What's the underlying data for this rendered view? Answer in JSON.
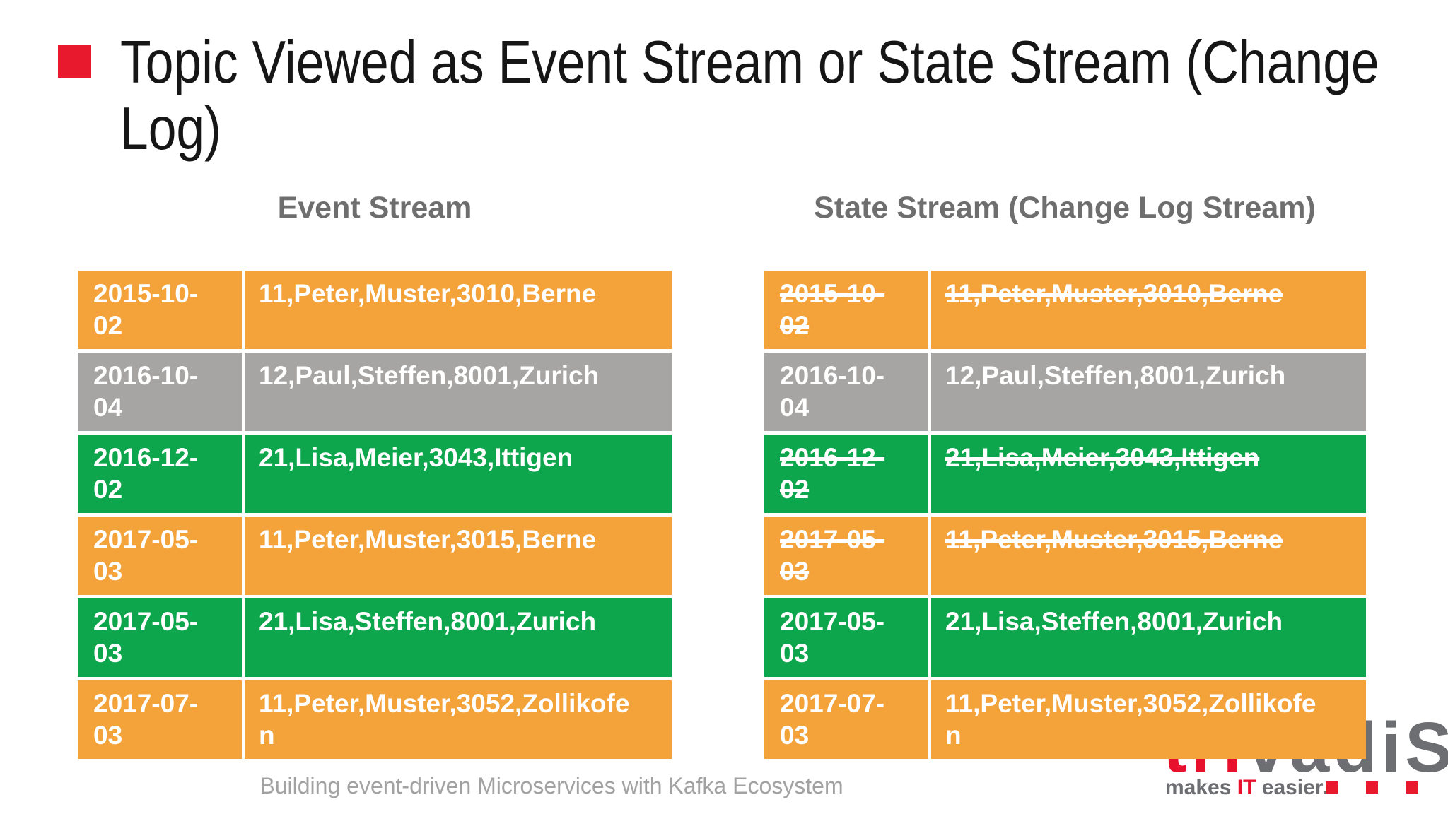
{
  "slide": {
    "title": "Topic Viewed as Event Stream or State Stream (Change Log)",
    "footer": "Building event-driven Microservices with Kafka Ecosystem"
  },
  "colors": {
    "orange": "#f4a23a",
    "gray": "#a6a5a3",
    "green": "#0ea64c",
    "accent_red": "#e8192d",
    "title_text": "#161616",
    "header_text": "#6e6e6e",
    "footer_text": "#a2a2a2",
    "logo_gray": "#6d6e71",
    "logo_red": "#e8112d"
  },
  "tables": {
    "event_stream": {
      "header": "Event Stream",
      "rows": [
        {
          "date": "2015-10-02",
          "value": "11,Peter,Muster,3010,Berne",
          "color": "orange",
          "struck": false
        },
        {
          "date": "2016-10-04",
          "value": "12,Paul,Steffen,8001,Zurich",
          "color": "gray",
          "struck": false
        },
        {
          "date": "2016-12-02",
          "value": "21,Lisa,Meier,3043,Ittigen",
          "color": "green",
          "struck": false
        },
        {
          "date": "2017-05-03",
          "value": "11,Peter,Muster,3015,Berne",
          "color": "orange",
          "struck": false
        },
        {
          "date": "2017-05-03",
          "value": "21,Lisa,Steffen,8001,Zurich",
          "color": "green",
          "struck": false
        },
        {
          "date": "2017-07-03",
          "value": "11,Peter,Muster,3052,Zollikofen",
          "color": "orange",
          "struck": false
        }
      ]
    },
    "state_stream": {
      "header": "State Stream (Change Log Stream)",
      "rows": [
        {
          "date": "2015-10-02",
          "value": "11,Peter,Muster,3010,Berne",
          "color": "orange",
          "struck": true
        },
        {
          "date": "2016-10-04",
          "value": "12,Paul,Steffen,8001,Zurich",
          "color": "gray",
          "struck": false
        },
        {
          "date": "2016-12-02",
          "value": "21,Lisa,Meier,3043,Ittigen",
          "color": "green",
          "struck": true
        },
        {
          "date": "2017-05-03",
          "value": "11,Peter,Muster,3015,Berne",
          "color": "orange",
          "struck": true
        },
        {
          "date": "2017-05-03",
          "value": "21,Lisa,Steffen,8001,Zurich",
          "color": "green",
          "struck": false
        },
        {
          "date": "2017-07-03",
          "value": "11,Peter,Muster,3052,Zollikofen",
          "color": "orange",
          "struck": false
        }
      ]
    }
  },
  "logo": {
    "brand_red": "tri",
    "brand_gray": "vadi",
    "brand_cap": "S",
    "tagline_pre": "makes ",
    "tagline_accent": "IT",
    "tagline_post": " easier."
  }
}
